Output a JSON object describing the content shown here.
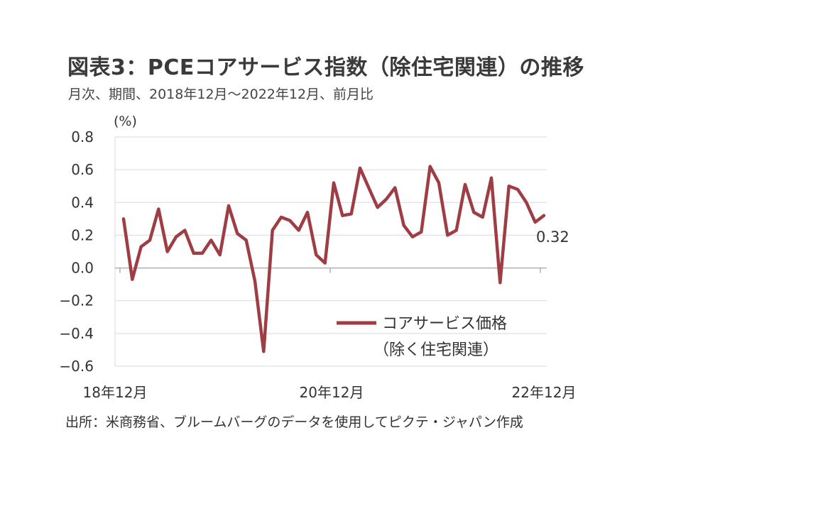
{
  "title": "図表3：PCEコアサービス指数（除住宅関連）の推移",
  "subtitle": "月次、期間、2018年12月～2022年12月、前月比",
  "source": "出所：米商務省、ブルームバーグのデータを使用してピクテ・ジャパン作成",
  "chart_data": {
    "type": "line",
    "unit": "(%)",
    "ylim": [
      -0.6,
      0.8
    ],
    "y_ticks": [
      0.8,
      0.6,
      0.4,
      0.2,
      0.0,
      -0.2,
      -0.4,
      -0.6
    ],
    "y_tick_labels": [
      "0.8",
      "0.6",
      "0.4",
      "0.2",
      "0.0",
      "−0.2",
      "−0.4",
      "−0.6"
    ],
    "x_tick_labels": [
      "18年12月",
      "20年12月",
      "22年12月"
    ],
    "x_tick_label_indices": [
      0,
      24,
      48
    ],
    "grid": "horizontal",
    "legend_position": "bottom-right",
    "series": [
      {
        "name": "コアサービス価格",
        "name_line2": "（除く住宅関連）",
        "color": "#9e3d44",
        "values": [
          0.3,
          -0.07,
          0.13,
          0.17,
          0.36,
          0.1,
          0.19,
          0.23,
          0.09,
          0.09,
          0.17,
          0.08,
          0.38,
          0.21,
          0.17,
          -0.08,
          -0.51,
          0.23,
          0.31,
          0.29,
          0.23,
          0.34,
          0.08,
          0.03,
          0.52,
          0.32,
          0.33,
          0.61,
          0.49,
          0.37,
          0.42,
          0.49,
          0.26,
          0.19,
          0.22,
          0.62,
          0.52,
          0.2,
          0.23,
          0.51,
          0.34,
          0.31,
          0.55,
          -0.09,
          0.5,
          0.48,
          0.4,
          0.28,
          0.32
        ]
      }
    ],
    "end_label": "0.32"
  }
}
